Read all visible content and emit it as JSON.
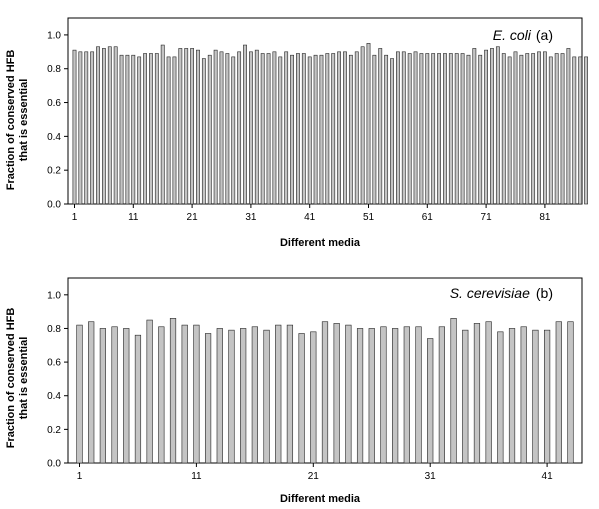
{
  "colors": {
    "bar_fill": "#c4c4c4",
    "bar_stroke": "#222222",
    "frame": "#000000"
  },
  "chart_data": [
    {
      "type": "bar",
      "organism": "E. coli",
      "tag": "(a)",
      "legend_position": "top-right",
      "grid": false,
      "xlabel": "Different media",
      "ylabel_line1": "Fraction of conserved HFB",
      "ylabel_line2": "that is essential",
      "ylim": [
        0,
        1.1
      ],
      "yticks": [
        "0.0",
        "0.2",
        "0.4",
        "0.6",
        "0.8",
        "1.0"
      ],
      "xticks": [
        "1",
        "11",
        "21",
        "31",
        "41",
        "51",
        "61",
        "71",
        "81"
      ],
      "values": [
        0.91,
        0.9,
        0.9,
        0.9,
        0.93,
        0.92,
        0.93,
        0.93,
        0.88,
        0.88,
        0.88,
        0.87,
        0.89,
        0.89,
        0.89,
        0.94,
        0.87,
        0.87,
        0.92,
        0.92,
        0.92,
        0.91,
        0.86,
        0.88,
        0.91,
        0.9,
        0.89,
        0.87,
        0.9,
        0.94,
        0.9,
        0.91,
        0.89,
        0.89,
        0.9,
        0.87,
        0.9,
        0.88,
        0.89,
        0.89,
        0.87,
        0.88,
        0.88,
        0.89,
        0.89,
        0.9,
        0.9,
        0.88,
        0.9,
        0.93,
        0.95,
        0.88,
        0.92,
        0.88,
        0.86,
        0.9,
        0.9,
        0.89,
        0.9,
        0.89,
        0.89,
        0.89,
        0.89,
        0.89,
        0.89,
        0.89,
        0.89,
        0.88,
        0.92,
        0.88,
        0.91,
        0.92,
        0.93,
        0.89,
        0.87,
        0.9,
        0.88,
        0.89,
        0.89,
        0.9,
        0.9,
        0.87,
        0.89,
        0.89,
        0.92,
        0.87,
        0.87,
        0.87
      ]
    },
    {
      "type": "bar",
      "organism": "S. cerevisiae",
      "tag": "(b)",
      "legend_position": "top-right",
      "grid": false,
      "xlabel": "Different media",
      "ylabel_line1": "Fraction of conserved HFB",
      "ylabel_line2": "that is essential",
      "ylim": [
        0,
        1.1
      ],
      "yticks": [
        "0.0",
        "0.2",
        "0.4",
        "0.6",
        "0.8",
        "1.0"
      ],
      "xticks": [
        "1",
        "11",
        "21",
        "31",
        "41"
      ],
      "values": [
        0.82,
        0.84,
        0.8,
        0.81,
        0.8,
        0.76,
        0.85,
        0.81,
        0.86,
        0.82,
        0.82,
        0.77,
        0.8,
        0.79,
        0.8,
        0.81,
        0.79,
        0.82,
        0.82,
        0.77,
        0.78,
        0.84,
        0.83,
        0.82,
        0.8,
        0.8,
        0.81,
        0.8,
        0.81,
        0.81,
        0.74,
        0.81,
        0.86,
        0.79,
        0.83,
        0.84,
        0.78,
        0.8,
        0.81,
        0.79,
        0.79,
        0.84,
        0.84
      ]
    }
  ]
}
